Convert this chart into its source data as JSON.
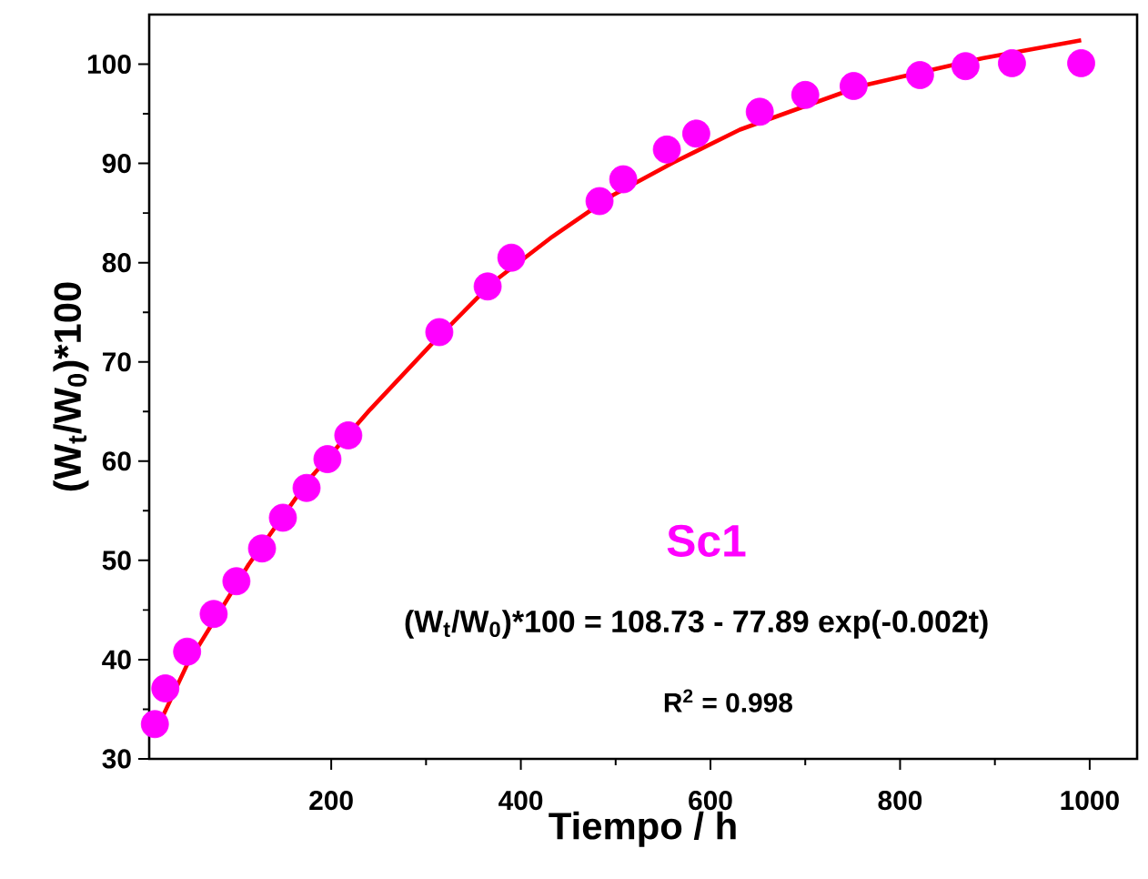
{
  "chart_data": {
    "type": "scatter",
    "xlabel": "Tiempo / h",
    "ylabel": "(W$_{t}$/W$_{0}$)*100",
    "xlim": [
      8,
      1050
    ],
    "ylim": [
      30,
      105
    ],
    "xticks": [
      200,
      400,
      600,
      800,
      1000
    ],
    "yticks": [
      30,
      40,
      50,
      60,
      70,
      80,
      90,
      100
    ],
    "legend": false,
    "grid": false,
    "marker": "circle",
    "annotations": [
      "(W$_{t}$/W$_{0}$)*100 = 108.73 - 77.89 exp(-0.002t)",
      "R$^{2}$ = 0.998"
    ],
    "series": [
      {
        "name": "Sc1",
        "color": "#ff00ff",
        "x": [
          14,
          25,
          48,
          76,
          100,
          127,
          149,
          174,
          196,
          218,
          314,
          365,
          390,
          483,
          508,
          554,
          585,
          652,
          700,
          751,
          821,
          869,
          918,
          991
        ],
        "values": [
          33.5,
          37.1,
          40.8,
          44.6,
          47.9,
          51.2,
          54.3,
          57.3,
          60.2,
          62.6,
          73.0,
          77.6,
          80.5,
          86.2,
          88.4,
          91.4,
          93.0,
          95.2,
          96.9,
          97.8,
          98.9,
          99.8,
          100.1,
          100.1
        ]
      },
      {
        "type": "line",
        "color": "#ff0000",
        "marker": "none",
        "line_style": "solid",
        "x": [
          14,
          48,
          113,
          177,
          241,
          305,
          369,
          433,
          497,
          561,
          631,
          759,
          887,
          991
        ],
        "values": [
          32.6,
          39.5,
          49.6,
          58.2,
          65.2,
          71.7,
          77.9,
          82.6,
          86.8,
          90.1,
          93.4,
          97.8,
          100.6,
          102.4
        ]
      }
    ]
  }
}
